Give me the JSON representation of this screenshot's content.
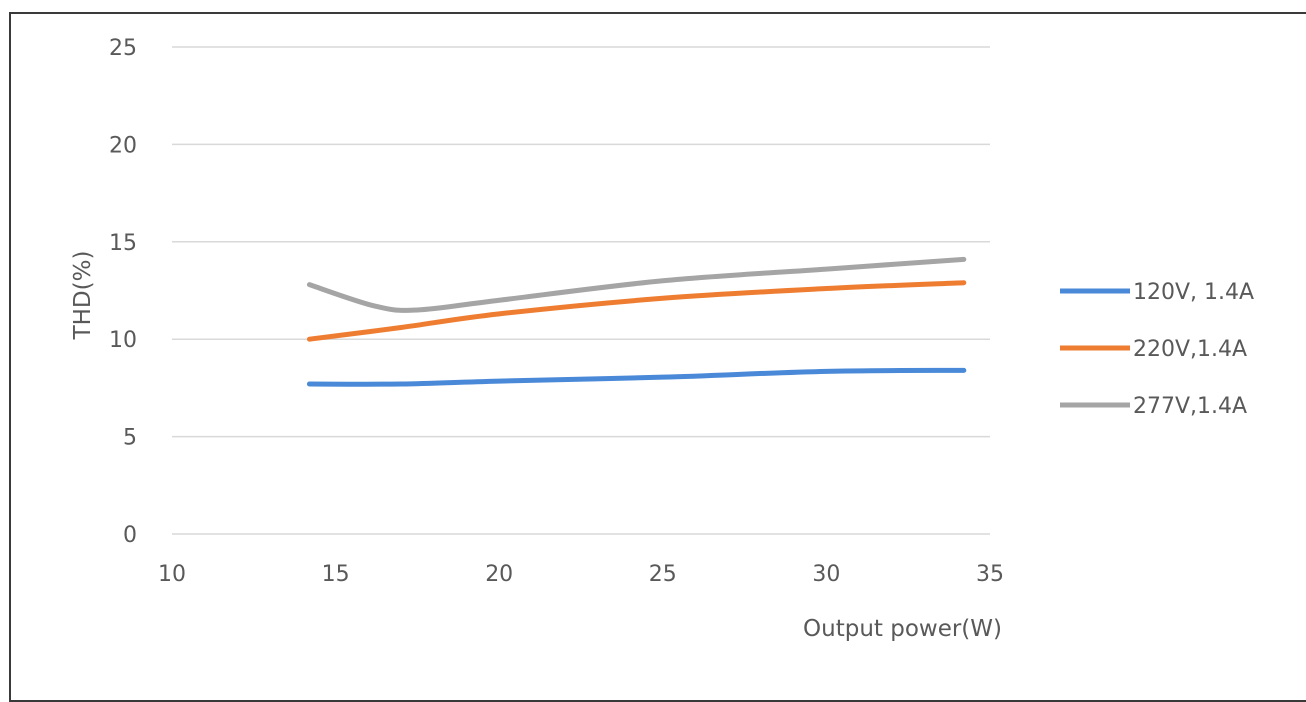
{
  "chart_data": {
    "type": "line",
    "title": "",
    "xlabel": "Output power(W)",
    "ylabel": "THD(%)",
    "xlim": [
      10,
      35
    ],
    "ylim": [
      0,
      25
    ],
    "xticks": [
      "10",
      "15",
      "20",
      "25",
      "30",
      "35"
    ],
    "yticks": [
      "0",
      "5",
      "10",
      "15",
      "20",
      "25"
    ],
    "grid": "horizontal",
    "legend": "right",
    "series": [
      {
        "name": "120V, 1.4A",
        "color": "#4a89d8",
        "points": [
          [
            14.2,
            7.7
          ],
          [
            17,
            7.7
          ],
          [
            20,
            7.85
          ],
          [
            25,
            8.05
          ],
          [
            30,
            8.35
          ],
          [
            34.2,
            8.4
          ]
        ]
      },
      {
        "name": "220V,1.4A",
        "color": "#ee7d31",
        "points": [
          [
            14.2,
            10.0
          ],
          [
            17,
            10.6
          ],
          [
            20,
            11.3
          ],
          [
            25,
            12.1
          ],
          [
            30,
            12.6
          ],
          [
            34.2,
            12.9
          ]
        ]
      },
      {
        "name": "277V,1.4A",
        "color": "#a5a5a5",
        "points": [
          [
            14.2,
            12.8
          ],
          [
            16.2,
            11.7
          ],
          [
            17.5,
            11.5
          ],
          [
            20,
            12.0
          ],
          [
            25,
            13.0
          ],
          [
            30,
            13.6
          ],
          [
            34.2,
            14.1
          ]
        ]
      }
    ]
  }
}
